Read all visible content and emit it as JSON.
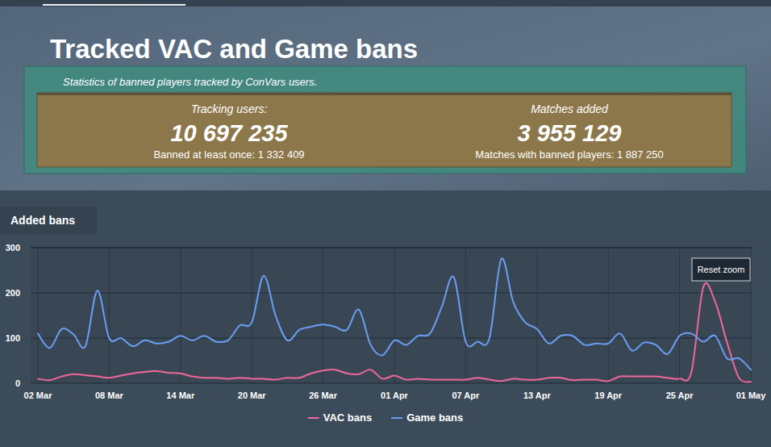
{
  "header": {
    "title": "Tracked VAC and Game bans",
    "subtitle": "Statistics of banned players tracked by ConVars users.",
    "stats": [
      {
        "label": "Tracking users:",
        "value": "10 697 235",
        "detail": "Banned at least once: 1 332 409"
      },
      {
        "label": "Matches added",
        "value": "3 955 129",
        "detail": "Matches with banned players: 1 887 250"
      }
    ]
  },
  "chart_data": {
    "type": "line",
    "title": "Added bans",
    "annotations": [
      "Reset zoom"
    ],
    "categories": [
      "02 Mar",
      null,
      null,
      null,
      null,
      null,
      "08 Mar",
      null,
      null,
      null,
      null,
      null,
      "14 Mar",
      null,
      null,
      null,
      null,
      null,
      "20 Mar",
      null,
      null,
      null,
      null,
      null,
      "26 Mar",
      null,
      null,
      null,
      null,
      null,
      "01 Apr",
      null,
      null,
      null,
      null,
      null,
      "07 Apr",
      null,
      null,
      null,
      null,
      null,
      "13 Apr",
      null,
      null,
      null,
      null,
      null,
      "19 Apr",
      null,
      null,
      null,
      null,
      null,
      "25 Apr",
      null,
      null,
      null,
      null,
      null,
      "01 May"
    ],
    "series": [
      {
        "name": "VAC bans",
        "color": "#f0679a",
        "line_style": "smooth",
        "values": [
          10,
          7,
          15,
          20,
          18,
          15,
          12,
          17,
          22,
          25,
          27,
          23,
          22,
          15,
          12,
          12,
          10,
          12,
          10,
          10,
          8,
          12,
          12,
          22,
          28,
          30,
          22,
          20,
          30,
          10,
          17,
          8,
          10,
          8,
          8,
          8,
          8,
          12,
          8,
          5,
          10,
          8,
          8,
          12,
          12,
          7,
          8,
          8,
          5,
          15,
          15,
          15,
          15,
          12,
          10,
          25,
          213,
          180,
          90,
          12,
          3
        ]
      },
      {
        "name": "Game bans",
        "color": "#6a9ef5",
        "line_style": "smooth",
        "values": [
          110,
          78,
          120,
          108,
          82,
          205,
          100,
          100,
          82,
          95,
          88,
          92,
          105,
          95,
          105,
          92,
          95,
          128,
          135,
          238,
          150,
          95,
          118,
          125,
          130,
          125,
          118,
          163,
          85,
          62,
          95,
          85,
          105,
          110,
          170,
          235,
          92,
          92,
          100,
          275,
          180,
          135,
          120,
          88,
          105,
          105,
          85,
          88,
          88,
          110,
          72,
          90,
          85,
          65,
          105,
          110,
          92,
          105,
          55,
          55,
          30
        ]
      }
    ],
    "ylim": [
      0,
      300
    ],
    "yticks": [
      0,
      100,
      200,
      300
    ],
    "grid": true,
    "legend": "bottom"
  }
}
